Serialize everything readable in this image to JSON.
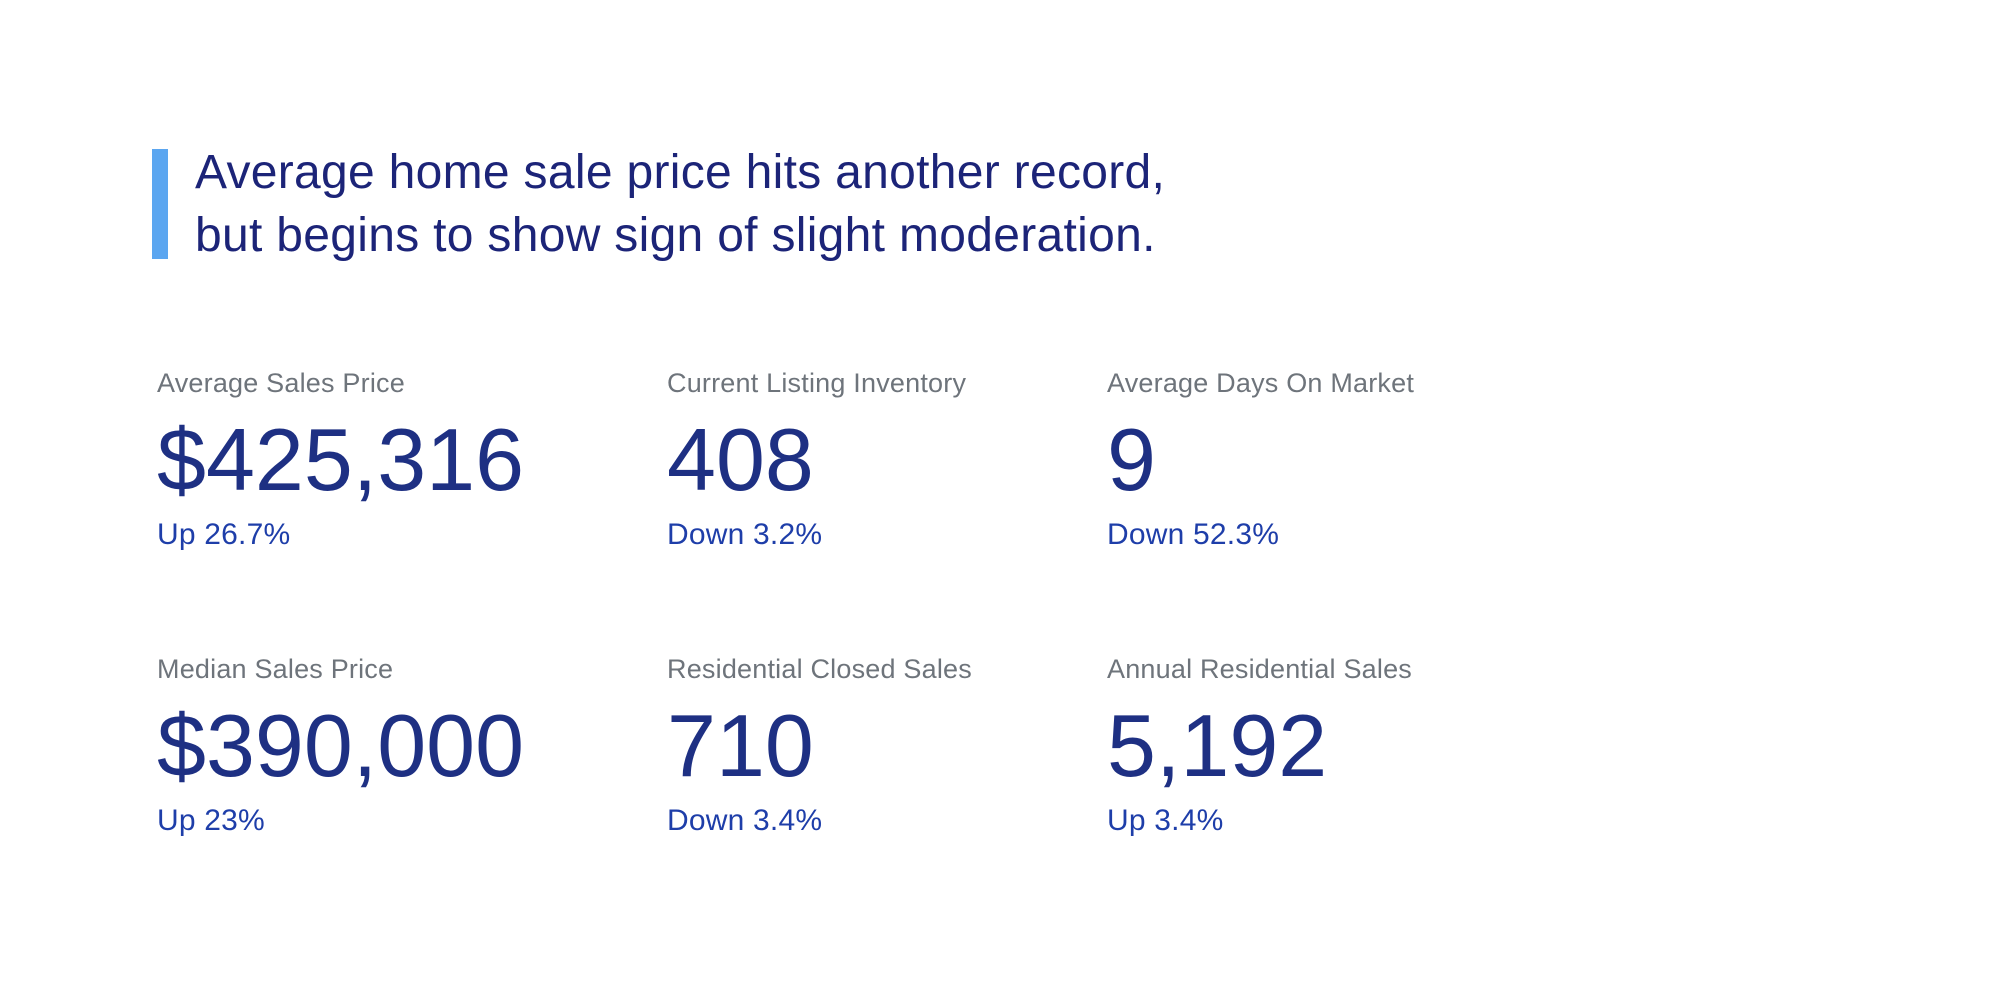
{
  "headline": {
    "line1": "Average home sale price hits another record,",
    "line2": "but begins to show sign of slight moderation.",
    "accent_color": "#5ba6f0",
    "text_color": "#1c2478"
  },
  "stats": [
    {
      "label": "Average Sales Price",
      "value": "$425,316",
      "change": "Up 26.7%"
    },
    {
      "label": "Current Listing Inventory",
      "value": "408",
      "change": "Down 3.2%"
    },
    {
      "label": "Average Days On Market",
      "value": "9",
      "change": "Down 52.3%"
    },
    {
      "label": "Median Sales Price",
      "value": "$390,000",
      "change": "Up 23%"
    },
    {
      "label": "Residential Closed Sales",
      "value": "710",
      "change": "Down 3.4%"
    },
    {
      "label": "Annual Residential Sales",
      "value": "5,192",
      "change": "Up 3.4%"
    }
  ],
  "colors": {
    "background": "#ffffff",
    "label_gray": "#6e747b",
    "value_navy": "#1e3083",
    "change_blue": "#1e3ea9"
  }
}
